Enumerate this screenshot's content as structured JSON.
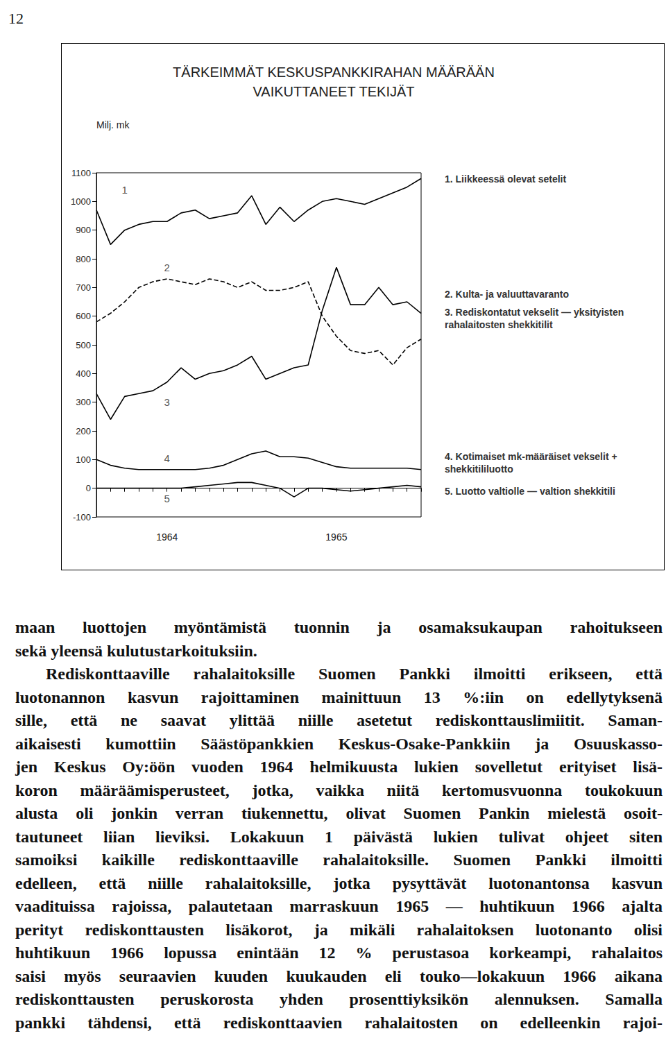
{
  "page_number": "12",
  "chart_data": {
    "type": "line",
    "title": "TÄRKEIMMÄT KESKUSPANKKIRAHAN MÄÄRÄÄN\nVAIKUTTANEET TEKIJÄT",
    "y_label": "Milj. mk",
    "categories": [
      null,
      null,
      null,
      null,
      null,
      "1964",
      null,
      null,
      null,
      null,
      null,
      null,
      null,
      null,
      null,
      null,
      null,
      "1965",
      null,
      null,
      null,
      null,
      null,
      null
    ],
    "ylim": [
      -100,
      1100
    ],
    "yticks": [
      -100,
      0,
      100,
      200,
      300,
      400,
      500,
      600,
      700,
      800,
      900,
      1000,
      1100
    ],
    "grid": false,
    "series": [
      {
        "name": "1. Liikkeessä olevat setelit",
        "color": "#000000",
        "line_style": "solid",
        "values": [
          970,
          850,
          900,
          920,
          930,
          930,
          960,
          970,
          940,
          950,
          960,
          1020,
          920,
          980,
          930,
          970,
          1000,
          1010,
          1000,
          990,
          1010,
          1030,
          1050,
          1080
        ]
      },
      {
        "name": "2. Kulta- ja valuuttavaranto",
        "color": "#000000",
        "line_style": "dashed",
        "values": [
          580,
          610,
          650,
          700,
          720,
          730,
          720,
          710,
          730,
          720,
          700,
          720,
          690,
          690,
          700,
          720,
          600,
          530,
          480,
          470,
          480,
          430,
          490,
          520
        ]
      },
      {
        "name": "3. Rediskontatut vekselit — yksityisten rahalaitosten shekkitilit",
        "color": "#000000",
        "line_style": "solid",
        "values": [
          330,
          240,
          320,
          330,
          340,
          370,
          420,
          380,
          400,
          410,
          430,
          460,
          380,
          400,
          420,
          430,
          620,
          770,
          640,
          640,
          700,
          640,
          650,
          610
        ]
      },
      {
        "name": "4. Kotimaiset mk-määräiset vekselit + shekkitililuotto",
        "color": "#000000",
        "line_style": "solid",
        "values": [
          100,
          80,
          70,
          65,
          65,
          65,
          65,
          65,
          70,
          80,
          100,
          120,
          130,
          110,
          110,
          105,
          90,
          75,
          70,
          70,
          70,
          70,
          70,
          65
        ]
      },
      {
        "name": "5. Luotto valtiolle — valtion shekkitili",
        "color": "#000000",
        "line_style": "solid",
        "values": [
          0,
          0,
          0,
          0,
          0,
          0,
          0,
          5,
          10,
          15,
          20,
          20,
          10,
          0,
          -30,
          0,
          0,
          -5,
          -10,
          -5,
          0,
          5,
          10,
          5
        ]
      }
    ],
    "annotations": [
      {
        "text": "1",
        "x": 2,
        "y": 1040
      },
      {
        "text": "2",
        "x": 5,
        "y": 770
      },
      {
        "text": "3",
        "x": 5,
        "y": 300
      },
      {
        "text": "4",
        "x": 5,
        "y": 105
      },
      {
        "text": "5",
        "x": 5,
        "y": -35
      }
    ]
  },
  "text": {
    "paragraphs": [
      [
        "maan luottojen myöntämistä tuonnin ja osamaksukaupan rahoitukseen",
        "sekä yleensä kulutustarkoituksiin."
      ],
      [
        "Rediskonttaaville rahalaitoksille Suomen Pankki ilmoitti erikseen, että",
        "luotonannon kasvun rajoittaminen mainittuun 13 %:iin on edellytyksenä",
        "sille, että ne saavat ylittää niille asetetut rediskonttauslimiitit. Saman-",
        "aikaisesti kumottiin Säästöpankkien Keskus-Osake-Pankkiin ja Osuuskasso-",
        "jen Keskus Oy:öön vuoden 1964 helmikuusta lukien sovelletut erityiset lisä-",
        "koron määräämisperusteet, jotka, vaikka niitä kertomusvuonna toukokuun",
        "alusta oli jonkin verran tiukennettu, olivat Suomen Pankin mielestä osoit-",
        "tautuneet liian lieviksi. Lokakuun 1 päivästä lukien tulivat ohjeet siten",
        "samoiksi kaikille rediskonttaaville rahalaitoksille. Suomen Pankki ilmoitti",
        "edelleen, että niille rahalaitoksille, jotka pysyttävät luotonantonsa kasvun",
        "vaadituissa rajoissa, palautetaan marraskuun 1965 — huhtikuun 1966 ajalta",
        "perityt rediskonttausten lisäkorot, ja mikäli rahalaitoksen luotonanto olisi",
        "huhtikuun 1966 lopussa enintään 12 % perustasoa korkeampi, rahalaitos",
        "saisi myös seuraavien kuuden kuukauden eli touko—lokakuun 1966 aikana",
        "rediskonttausten peruskorosta yhden prosenttiyksikön alennuksen. Samalla",
        "pankki tähdensi, että rediskonttaavien rahalaitosten on edelleenkin rajoi-"
      ]
    ]
  }
}
